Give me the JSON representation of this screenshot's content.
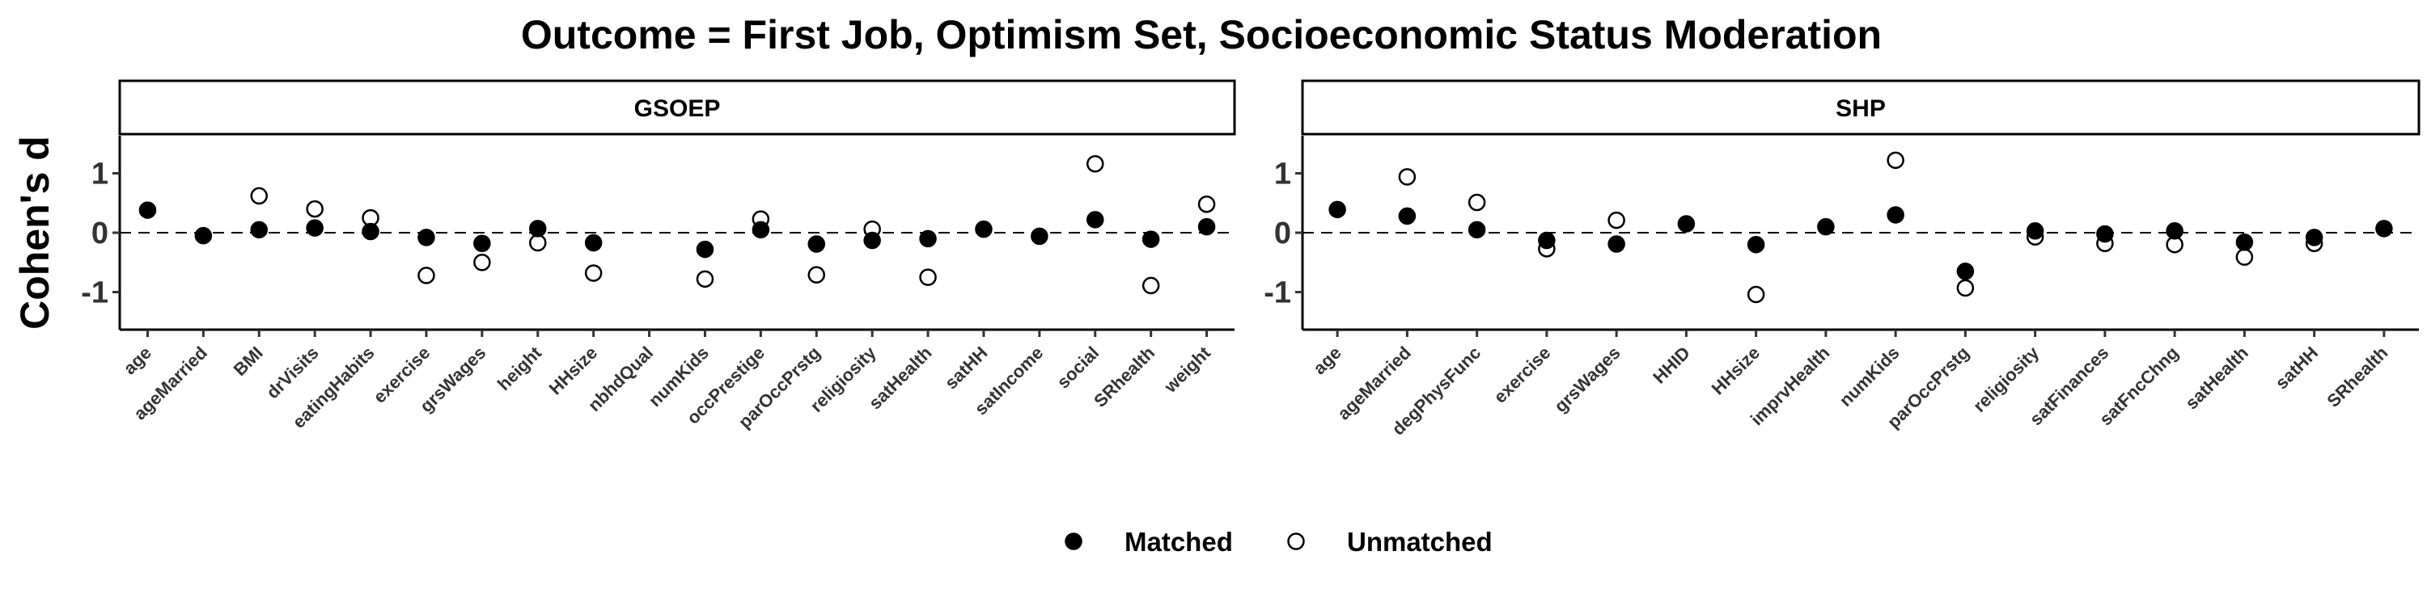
{
  "chart_data": {
    "type": "scatter",
    "title": "Outcome = First Job, Optimism Set, Socioeconomic Status Moderation",
    "ylabel": "Cohen's d",
    "xlabel": "",
    "ylim": [
      -1.6,
      1.6
    ],
    "yticks": [
      -1,
      0,
      1
    ],
    "reference_line": 0,
    "grid": false,
    "legend": {
      "position": "bottom",
      "entries": [
        {
          "name": "Matched",
          "marker": "filled-circle"
        },
        {
          "name": "Unmatched",
          "marker": "open-circle"
        }
      ]
    },
    "panels": [
      {
        "strip": "GSOEP",
        "categories": [
          "age",
          "ageMarried",
          "BMI",
          "drVisits",
          "eatingHabits",
          "exercise",
          "grsWages",
          "height",
          "HHsize",
          "nbhdQual",
          "numKids",
          "occPrestige",
          "parOccPrstg",
          "religiosity",
          "satHealth",
          "satHH",
          "satIncome",
          "social",
          "SRhealth",
          "weight"
        ],
        "series": [
          {
            "name": "Matched",
            "values": [
              0.38,
              -0.05,
              0.05,
              0.08,
              0.02,
              -0.08,
              -0.18,
              0.07,
              -0.17,
              null,
              -0.28,
              0.05,
              -0.19,
              -0.13,
              -0.1,
              0.06,
              -0.06,
              0.22,
              -0.11,
              0.1
            ]
          },
          {
            "name": "Unmatched",
            "values": [
              null,
              null,
              0.62,
              0.4,
              0.25,
              -0.72,
              -0.5,
              -0.17,
              -0.68,
              null,
              -0.78,
              0.23,
              -0.71,
              0.06,
              -0.75,
              null,
              null,
              1.16,
              -0.89,
              0.48
            ]
          }
        ]
      },
      {
        "strip": "SHP",
        "categories": [
          "age",
          "ageMarried",
          "degPhysFunc",
          "exercise",
          "grsWages",
          "HHID",
          "HHsize",
          "imprvHealth",
          "numKids",
          "parOccPrstg",
          "religiosity",
          "satFinances",
          "satFncChng",
          "satHealth",
          "satHH",
          "SRhealth"
        ],
        "series": [
          {
            "name": "Matched",
            "values": [
              0.39,
              0.28,
              0.05,
              -0.13,
              -0.19,
              0.15,
              -0.2,
              0.1,
              0.3,
              -0.65,
              0.03,
              -0.02,
              0.03,
              -0.16,
              -0.08,
              0.07
            ]
          },
          {
            "name": "Unmatched",
            "values": [
              null,
              0.94,
              0.51,
              -0.27,
              0.21,
              null,
              -1.04,
              null,
              1.22,
              -0.93,
              -0.07,
              -0.18,
              -0.2,
              -0.41,
              -0.18,
              null
            ]
          }
        ]
      }
    ]
  }
}
